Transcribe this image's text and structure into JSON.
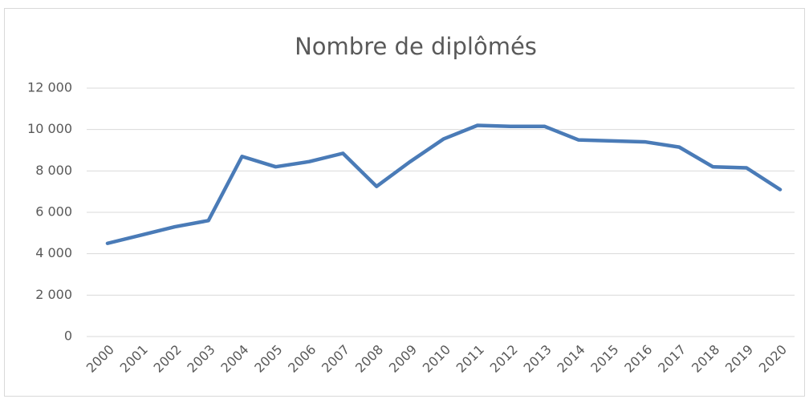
{
  "chart_data": {
    "type": "line",
    "title": "Nombre de diplômés",
    "categories": [
      "2000",
      "2001",
      "2002",
      "2003",
      "2004",
      "2005",
      "2006",
      "2007",
      "2008",
      "2009",
      "2010",
      "2011",
      "2012",
      "2013",
      "2014",
      "2015",
      "2016",
      "2017",
      "2018",
      "2019",
      "2020"
    ],
    "series": [
      {
        "color": "#4a7bb7",
        "values": [
          4500,
          4900,
          5300,
          5600,
          8700,
          8200,
          8450,
          8850,
          7250,
          8450,
          9550,
          10200,
          10150,
          10150,
          9500,
          9450,
          9400,
          9150,
          8200,
          8150,
          7100
        ]
      }
    ],
    "ylim": [
      0,
      12000
    ],
    "yticks": [
      0,
      {
        "value": 2000,
        "label": "2 000"
      },
      {
        "value": 4000,
        "label": "4 000"
      },
      {
        "value": 6000,
        "label": "6 000"
      },
      {
        "value": 8000,
        "label": "8 000"
      },
      {
        "value": 10000,
        "label": "10 000"
      },
      {
        "value": 12000,
        "label": "12 000"
      }
    ],
    "grid": true
  }
}
